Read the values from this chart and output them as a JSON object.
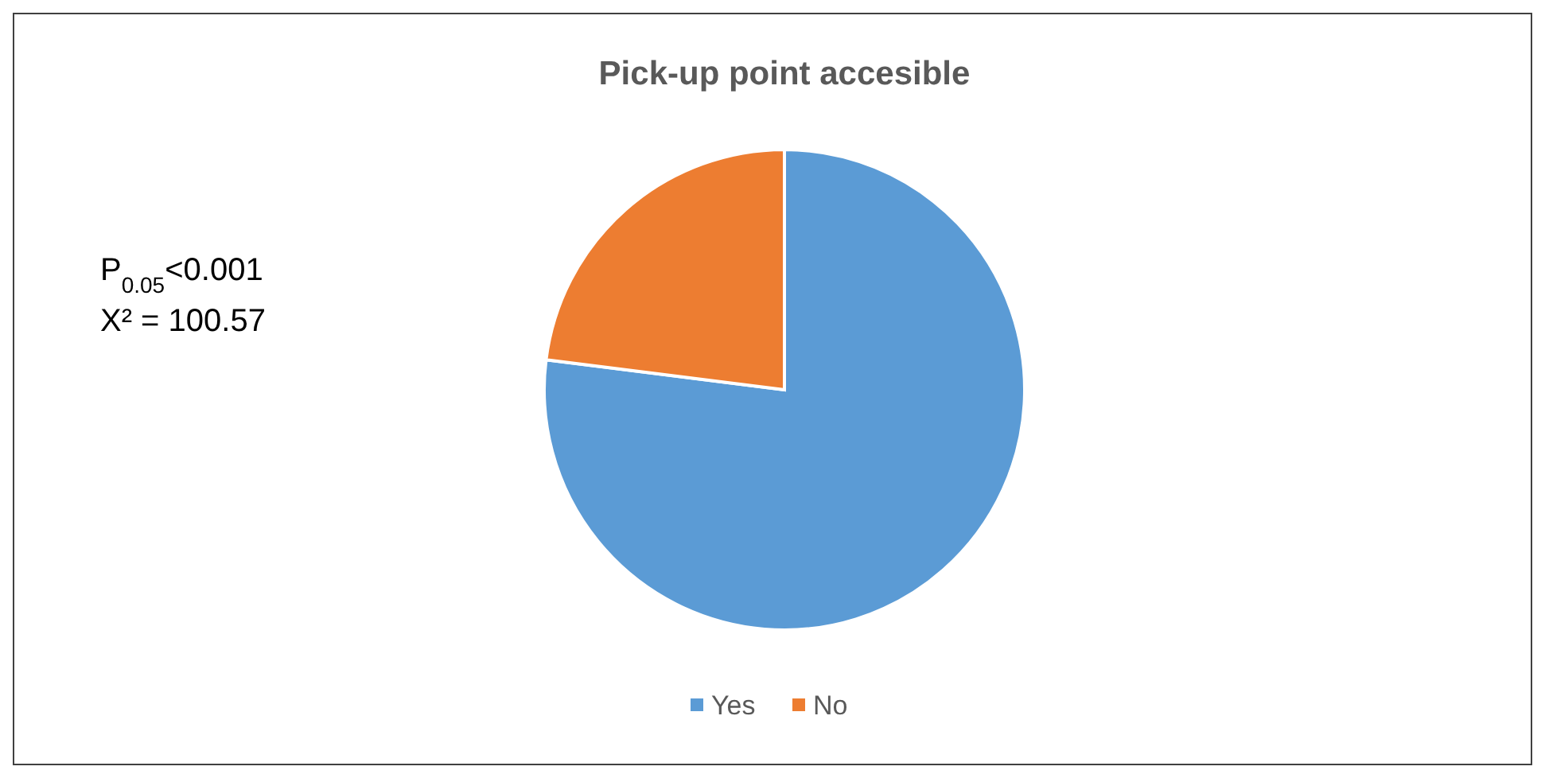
{
  "chart_data": {
    "type": "pie",
    "title": "Pick-up point accesible",
    "categories": [
      "Yes",
      "No"
    ],
    "values": [
      77,
      23
    ],
    "colors": [
      "#5b9bd5",
      "#ed7d31"
    ],
    "annotations": [
      "P$_{0.05}$<0.001",
      "X² = 100.57"
    ],
    "legend": "bottom"
  }
}
